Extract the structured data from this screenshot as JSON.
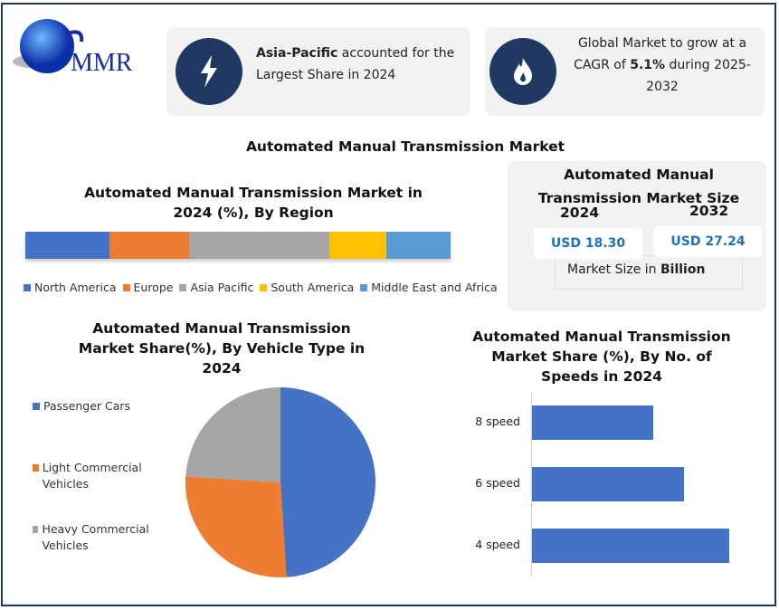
{
  "logo": {
    "text": "MMR"
  },
  "card1": {
    "icon": "lightning-icon",
    "bold": "Asia-Pacific",
    "text": " accounted for the Largest Share in 2024"
  },
  "card2": {
    "icon": "flame-icon",
    "text1": "Global Market to grow at a CAGR of ",
    "bold": "5.1%",
    "text2": " during 2025-2032"
  },
  "main_title": "Automated Manual Transmission Market",
  "size_box": {
    "title": "Automated Manual Transmission Market Size",
    "year1": "2024",
    "year2": "2032",
    "value1": "USD 18.30",
    "value2": "USD 27.24",
    "unit_text": "Market Size in ",
    "unit_bold": "Billion"
  },
  "chart_data": [
    {
      "type": "bar",
      "orientation": "stacked-horizontal",
      "title": "Automated Manual Transmission Market in 2024 (%), By Region",
      "categories": [
        "North America",
        "Europe",
        "Asia Pacific",
        "South America",
        "Middle East and Africa"
      ],
      "values": [
        19.8,
        18.7,
        33.0,
        13.4,
        15.1
      ],
      "colors": [
        "#4472c4",
        "#ed7d31",
        "#a5a5a5",
        "#ffc000",
        "#5b9bd5"
      ],
      "legend": "bottom"
    },
    {
      "type": "pie",
      "title": "Automated Manual Transmission Market Share(%), By Vehicle Type  in 2024",
      "categories": [
        "Passenger Cars",
        "Light Commercial Vehicles",
        "Heavy Commercial Vehicles"
      ],
      "values": [
        49,
        27,
        24
      ],
      "colors": [
        "#4472c4",
        "#ed7d31",
        "#a5a5a5"
      ],
      "legend": "left"
    },
    {
      "type": "bar",
      "orientation": "horizontal",
      "title": "Automated Manual Transmission Market Share (%), By  No. of Speeds  in 2024",
      "categories": [
        "8 speed",
        "6 speed",
        "4 speed"
      ],
      "values": [
        25.8,
        32.3,
        41.9
      ],
      "colors": [
        "#4472c4"
      ]
    }
  ]
}
